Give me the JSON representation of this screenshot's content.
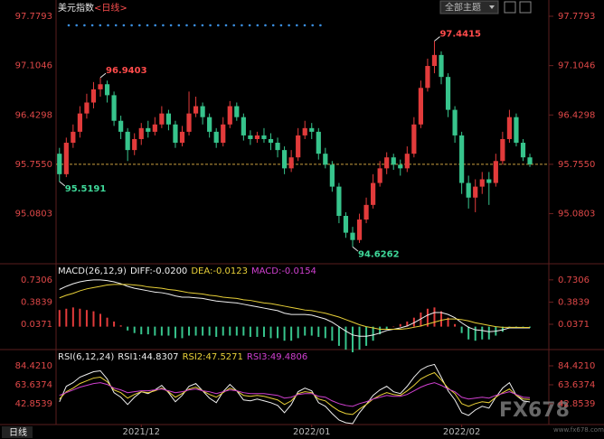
{
  "header": {
    "title": "美元指数",
    "title_suffix": "<日线>",
    "theme_button": "全部主题"
  },
  "period_button": "日线",
  "watermark": {
    "logo": "FX678",
    "url": "www.fx678.com"
  },
  "chart_data": [
    {
      "type": "candlestick",
      "ylim": [
        94.42,
        97.94
      ],
      "yticks": [
        97.7793,
        97.1046,
        96.4298,
        {
          "value": 95.755,
          "label": "95.7550"
        },
        95.0803
      ],
      "xticks": [
        {
          "value": 12,
          "label": "2021/12"
        },
        {
          "value": 37,
          "label": "2022/01"
        },
        {
          "value": 59,
          "label": "2022/02"
        }
      ],
      "up_color": "#e23b3b",
      "down_color": "#37c48c",
      "last_price_line": true,
      "last_price_color": "#c9a040",
      "open": [
        95.9,
        95.62,
        96.05,
        96.2,
        96.45,
        96.6,
        96.78,
        96.85,
        96.7,
        96.35,
        96.2,
        95.95,
        96.1,
        96.25,
        96.2,
        96.3,
        96.45,
        96.3,
        96.05,
        96.2,
        96.45,
        96.55,
        96.4,
        96.2,
        96.05,
        96.3,
        96.55,
        96.4,
        96.15,
        96.1,
        96.15,
        96.1,
        96.05,
        95.95,
        95.7,
        95.85,
        96.15,
        96.25,
        96.2,
        95.9,
        95.75,
        95.45,
        95.05,
        94.82,
        94.72,
        95.0,
        95.2,
        95.5,
        95.7,
        95.85,
        95.75,
        95.7,
        95.9,
        96.3,
        96.8,
        97.1,
        97.25,
        96.95,
        96.5,
        96.15,
        95.5,
        95.3,
        95.45,
        95.55,
        95.5,
        95.8,
        96.1,
        96.4,
        96.05,
        95.85
      ],
      "high": [
        95.98,
        96.12,
        96.3,
        96.55,
        96.72,
        96.88,
        96.9403,
        96.9,
        96.75,
        96.42,
        96.25,
        96.18,
        96.32,
        96.35,
        96.4,
        96.55,
        96.5,
        96.35,
        96.28,
        96.75,
        96.68,
        96.6,
        96.45,
        96.25,
        96.4,
        96.62,
        96.6,
        96.45,
        96.22,
        96.2,
        96.25,
        96.18,
        96.12,
        96.0,
        95.95,
        96.25,
        96.35,
        96.32,
        96.25,
        95.98,
        95.8,
        95.5,
        95.1,
        94.9,
        95.08,
        95.3,
        95.62,
        95.8,
        95.92,
        95.9,
        95.82,
        96.0,
        96.4,
        96.9,
        97.2,
        97.4415,
        97.3,
        97.0,
        96.55,
        96.2,
        95.6,
        95.55,
        95.65,
        95.65,
        95.9,
        96.2,
        96.5,
        96.45,
        96.1,
        95.9
      ],
      "low": [
        95.5191,
        95.58,
        95.98,
        96.12,
        96.38,
        96.52,
        96.68,
        96.6,
        96.28,
        96.1,
        95.8,
        95.88,
        96.02,
        96.12,
        96.15,
        96.25,
        96.22,
        95.98,
        96.0,
        96.15,
        96.4,
        96.3,
        96.12,
        95.98,
        96.0,
        96.25,
        96.35,
        96.08,
        96.02,
        96.05,
        96.05,
        95.95,
        95.85,
        95.62,
        95.65,
        95.8,
        96.1,
        96.1,
        95.82,
        95.7,
        95.38,
        94.95,
        94.75,
        94.6262,
        94.68,
        94.95,
        95.15,
        95.45,
        95.62,
        95.68,
        95.6,
        95.65,
        95.85,
        96.25,
        96.75,
        97.0,
        96.85,
        96.4,
        96.05,
        95.35,
        95.15,
        95.1,
        95.35,
        95.2,
        95.45,
        95.75,
        96.05,
        96.0,
        95.8,
        95.72
      ],
      "close": [
        95.62,
        96.05,
        96.2,
        96.45,
        96.6,
        96.78,
        96.85,
        96.7,
        96.35,
        96.2,
        95.95,
        96.1,
        96.25,
        96.2,
        96.3,
        96.45,
        96.3,
        96.05,
        96.2,
        96.45,
        96.55,
        96.4,
        96.2,
        96.05,
        96.3,
        96.55,
        96.4,
        96.15,
        96.1,
        96.15,
        96.1,
        96.05,
        95.95,
        95.7,
        95.85,
        96.15,
        96.25,
        96.2,
        95.9,
        95.75,
        95.45,
        95.05,
        94.82,
        94.72,
        95.0,
        95.2,
        95.5,
        95.7,
        95.85,
        95.75,
        95.7,
        95.9,
        96.3,
        96.8,
        97.1,
        97.25,
        96.95,
        96.5,
        96.15,
        95.5,
        95.3,
        95.45,
        95.55,
        95.5,
        95.8,
        96.1,
        96.4,
        96.05,
        95.85,
        95.755
      ],
      "annotations": [
        {
          "index": 6,
          "value": 96.9403,
          "color": "#ff4b4b",
          "side": "above"
        },
        {
          "index": 55,
          "value": 97.4415,
          "color": "#ff4b4b",
          "side": "above"
        },
        {
          "index": 0,
          "value": 95.5191,
          "color": "#3fd99a",
          "side": "below"
        },
        {
          "index": 43,
          "value": 94.6262,
          "color": "#3fd99a",
          "side": "below"
        }
      ]
    },
    {
      "type": "macd",
      "title": "MACD(26,12,9)",
      "ylim": [
        -0.33,
        0.94
      ],
      "yticks": [
        0.7306,
        0.3839,
        0.0371
      ],
      "series": [
        {
          "name": "DIFF:-0.0200",
          "color": "#f0f0f0",
          "style": "line",
          "values": [
            0.58,
            0.63,
            0.67,
            0.7,
            0.72,
            0.73,
            0.73,
            0.72,
            0.7,
            0.67,
            0.63,
            0.6,
            0.58,
            0.56,
            0.54,
            0.53,
            0.51,
            0.48,
            0.46,
            0.46,
            0.45,
            0.44,
            0.42,
            0.4,
            0.39,
            0.38,
            0.37,
            0.35,
            0.33,
            0.31,
            0.29,
            0.27,
            0.25,
            0.21,
            0.19,
            0.19,
            0.19,
            0.18,
            0.15,
            0.12,
            0.07,
            0.0,
            -0.07,
            -0.13,
            -0.15,
            -0.15,
            -0.13,
            -0.1,
            -0.06,
            -0.04,
            -0.02,
            0.01,
            0.06,
            0.12,
            0.18,
            0.22,
            0.22,
            0.19,
            0.14,
            0.06,
            -0.01,
            -0.05,
            -0.06,
            -0.08,
            -0.07,
            -0.05,
            -0.02,
            -0.02,
            -0.02,
            -0.02
          ]
        },
        {
          "name": "DEA:-0.0123",
          "color": "#e8d038",
          "style": "line",
          "values": [
            0.45,
            0.49,
            0.52,
            0.56,
            0.59,
            0.61,
            0.63,
            0.65,
            0.66,
            0.66,
            0.66,
            0.65,
            0.64,
            0.62,
            0.61,
            0.6,
            0.58,
            0.57,
            0.55,
            0.53,
            0.52,
            0.51,
            0.49,
            0.48,
            0.46,
            0.45,
            0.44,
            0.42,
            0.41,
            0.39,
            0.37,
            0.36,
            0.34,
            0.32,
            0.3,
            0.28,
            0.26,
            0.25,
            0.23,
            0.21,
            0.18,
            0.15,
            0.11,
            0.07,
            0.03,
            0.0,
            -0.02,
            -0.04,
            -0.04,
            -0.04,
            -0.04,
            -0.03,
            -0.01,
            0.01,
            0.04,
            0.07,
            0.1,
            0.12,
            0.12,
            0.11,
            0.09,
            0.06,
            0.04,
            0.02,
            0.0,
            -0.01,
            -0.01,
            -0.01,
            -0.012,
            -0.0123
          ]
        },
        {
          "name": "MACD:-0.0154",
          "color": "#d040d0",
          "style": "bar",
          "up_color": "#e23b3b",
          "down_color": "#37c48c",
          "values": [
            0.26,
            0.28,
            0.3,
            0.28,
            0.26,
            0.24,
            0.2,
            0.14,
            0.08,
            0.02,
            -0.06,
            -0.1,
            -0.12,
            -0.12,
            -0.14,
            -0.14,
            -0.14,
            -0.18,
            -0.18,
            -0.14,
            -0.14,
            -0.14,
            -0.14,
            -0.16,
            -0.14,
            -0.14,
            -0.14,
            -0.14,
            -0.16,
            -0.16,
            -0.16,
            -0.18,
            -0.18,
            -0.22,
            -0.22,
            -0.18,
            -0.14,
            -0.14,
            -0.16,
            -0.18,
            -0.22,
            -0.3,
            -0.36,
            -0.4,
            -0.36,
            -0.3,
            -0.22,
            -0.12,
            -0.04,
            0.0,
            0.04,
            0.08,
            0.14,
            0.22,
            0.28,
            0.3,
            0.24,
            0.14,
            0.04,
            -0.1,
            -0.2,
            -0.22,
            -0.2,
            -0.2,
            -0.14,
            -0.08,
            -0.02,
            -0.02,
            -0.016,
            -0.0154
          ]
        }
      ]
    },
    {
      "type": "rsi",
      "title": "RSI(6,12,24)",
      "ylim": [
        20,
        99.3
      ],
      "yticks": [
        {
          "value": 84.421,
          "label": "84.4210"
        },
        63.6374,
        42.8539
      ],
      "series": [
        {
          "name": "RSI1:44.8307",
          "color": "#f0f0f0",
          "values": [
            45,
            62,
            66,
            72,
            75,
            78,
            79,
            70,
            55,
            50,
            42,
            50,
            56,
            54,
            58,
            63,
            55,
            45,
            52,
            62,
            65,
            57,
            49,
            44,
            56,
            64,
            57,
            47,
            46,
            48,
            46,
            44,
            41,
            33,
            42,
            56,
            60,
            57,
            44,
            40,
            32,
            25,
            22,
            21,
            33,
            42,
            52,
            58,
            62,
            56,
            54,
            62,
            72,
            80,
            84,
            86,
            72,
            57,
            47,
            33,
            30,
            36,
            40,
            38,
            50,
            60,
            66,
            52,
            46,
            44.8307
          ]
        },
        {
          "name": "RSI2:47.5271",
          "color": "#e8d038",
          "values": [
            48,
            56,
            60,
            65,
            68,
            71,
            72,
            67,
            58,
            55,
            49,
            53,
            56,
            55,
            57,
            60,
            56,
            50,
            54,
            59,
            61,
            57,
            53,
            50,
            55,
            60,
            57,
            52,
            51,
            52,
            51,
            49,
            47,
            42,
            46,
            54,
            56,
            55,
            48,
            46,
            40,
            35,
            32,
            31,
            37,
            42,
            48,
            52,
            55,
            53,
            52,
            57,
            63,
            70,
            74,
            77,
            69,
            60,
            54,
            43,
            40,
            43,
            45,
            44,
            50,
            55,
            59,
            52,
            48,
            47.5271
          ]
        },
        {
          "name": "RSI3:49.4806",
          "color": "#d040d0",
          "values": [
            52,
            55,
            58,
            61,
            63,
            65,
            66,
            64,
            60,
            58,
            55,
            56,
            57,
            57,
            58,
            59,
            57,
            55,
            56,
            58,
            59,
            57,
            56,
            54,
            56,
            58,
            57,
            55,
            54,
            54,
            54,
            53,
            52,
            49,
            50,
            53,
            54,
            54,
            51,
            50,
            46,
            43,
            41,
            40,
            43,
            45,
            48,
            50,
            52,
            51,
            51,
            53,
            57,
            61,
            64,
            66,
            63,
            59,
            56,
            50,
            48,
            49,
            50,
            49,
            52,
            54,
            56,
            53,
            50,
            49.4806
          ]
        }
      ]
    }
  ]
}
